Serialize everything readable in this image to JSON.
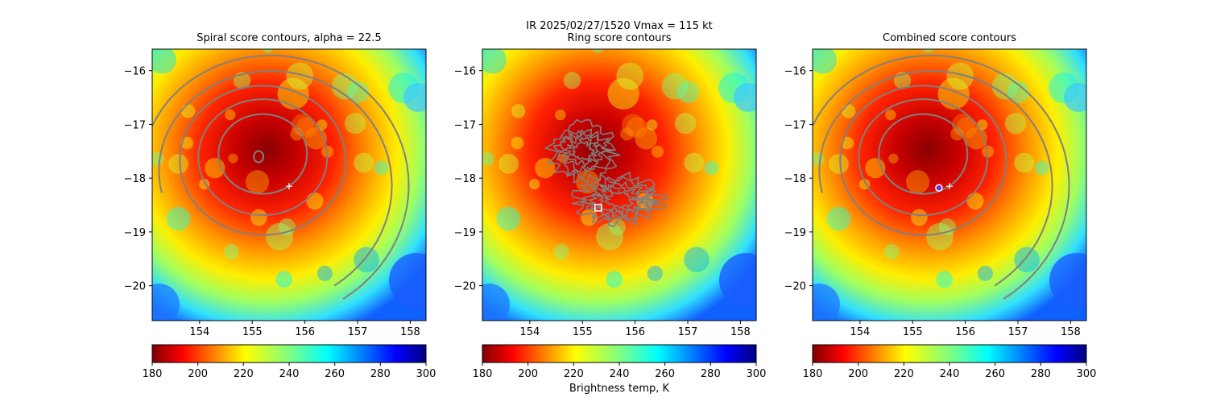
{
  "figure": {
    "suptitle_line1": "IR  2025/02/27/1520    Vmax = 115 kt"
  },
  "chart_data": [
    {
      "type": "heatmap",
      "title": "Spiral score contours, alpha = 22.5",
      "xlim": [
        153.1,
        158.3
      ],
      "ylim": [
        -20.65,
        -15.6
      ],
      "xticks": [
        154,
        155,
        156,
        157,
        158
      ],
      "yticks": [
        -16,
        -17,
        -18,
        -19,
        -20
      ],
      "contour_kind": "spiral",
      "marker_plus": {
        "x": 155.7,
        "y": -18.15
      },
      "colorbar": {
        "min": 180,
        "max": 300,
        "ticks": [
          180,
          200,
          220,
          240,
          260,
          280,
          300
        ],
        "colormap": "jet_reversed",
        "label": ""
      }
    },
    {
      "type": "heatmap",
      "title": "Ring score contours",
      "xlim": [
        153.1,
        158.3
      ],
      "ylim": [
        -20.65,
        -15.6
      ],
      "xticks": [
        154,
        155,
        156,
        157,
        158
      ],
      "yticks": [
        -16,
        -17,
        -18,
        -19,
        -20
      ],
      "contour_kind": "ring",
      "marker_square": {
        "x": 155.3,
        "y": -18.55
      },
      "colorbar": {
        "min": 180,
        "max": 300,
        "ticks": [
          180,
          200,
          220,
          240,
          260,
          280,
          300
        ],
        "colormap": "jet_reversed",
        "label": "Brightness temp, K"
      }
    },
    {
      "type": "heatmap",
      "title": "Combined score contours",
      "xlim": [
        153.1,
        158.3
      ],
      "ylim": [
        -20.65,
        -15.6
      ],
      "xticks": [
        154,
        155,
        156,
        157,
        158
      ],
      "yticks": [
        -16,
        -17,
        -18,
        -19,
        -20
      ],
      "contour_kind": "spiral",
      "marker_plus": {
        "x": 155.7,
        "y": -18.15
      },
      "marker_circle": {
        "x": 155.5,
        "y": -18.18
      },
      "colorbar": {
        "min": 180,
        "max": 300,
        "ticks": [
          180,
          200,
          220,
          240,
          260,
          280,
          300
        ],
        "colormap": "jet_reversed",
        "label": ""
      }
    }
  ],
  "colors": {
    "contour": "#808080",
    "marker_plus": "#ffffff",
    "marker_square": "#ffffff",
    "marker_circle_fill": "#7b2fd6",
    "marker_circle_edge": "#ffffff"
  }
}
